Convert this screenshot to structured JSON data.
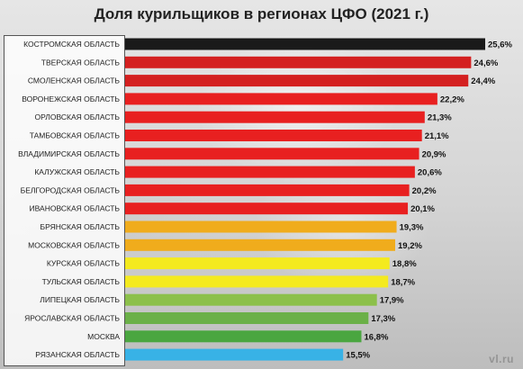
{
  "chart_data": {
    "type": "bar",
    "orientation": "horizontal",
    "title": "Доля курильщиков в регионах ЦФО (2021 г.)",
    "categories": [
      "КОСТРОМСКАЯ ОБЛАСТЬ",
      "ТВЕРСКАЯ ОБЛАСТЬ",
      "СМОЛЕНСКАЯ ОБЛАСТЬ",
      "ВОРОНЕЖСКАЯ ОБЛАСТЬ",
      "ОРЛОВСКАЯ ОБЛАСТЬ",
      "ТАМБОВСКАЯ ОБЛАСТЬ",
      "ВЛАДИМИРСКАЯ ОБЛАСТЬ",
      "КАЛУЖСКАЯ ОБЛАСТЬ",
      "БЕЛГОРОДСКАЯ ОБЛАСТЬ",
      "ИВАНОВСКАЯ ОБЛАСТЬ",
      "БРЯНСКАЯ ОБЛАСТЬ",
      "МОСКОВСКАЯ ОБЛАСТЬ",
      "КУРСКАЯ ОБЛАСТЬ",
      "ТУЛЬСКАЯ ОБЛАСТЬ",
      "ЛИПЕЦКАЯ ОБЛАСТЬ",
      "ЯРОСЛАВСКАЯ ОБЛАСТЬ",
      "МОСКВА",
      "РЯЗАНСКАЯ ОБЛАСТЬ"
    ],
    "values": [
      25.6,
      24.6,
      24.4,
      22.2,
      21.3,
      21.1,
      20.9,
      20.6,
      20.2,
      20.1,
      19.3,
      19.2,
      18.8,
      18.7,
      17.9,
      17.3,
      16.8,
      15.5
    ],
    "value_labels": [
      "25,6%",
      "24,6%",
      "24,4%",
      "22,2%",
      "21,3%",
      "21,1%",
      "20,9%",
      "20,6%",
      "20,2%",
      "20,1%",
      "19,3%",
      "19,2%",
      "18,8%",
      "18,7%",
      "17,9%",
      "17,3%",
      "16,8%",
      "15,5%"
    ],
    "colors": [
      "#1a1a1a",
      "#d42020",
      "#d42020",
      "#e82020",
      "#e82020",
      "#e82020",
      "#e82020",
      "#e82020",
      "#e82020",
      "#e82020",
      "#f0ac1c",
      "#f0ac1c",
      "#f4ea1e",
      "#f4ea1e",
      "#8cc04a",
      "#6bb048",
      "#4aa640",
      "#38b2e6"
    ],
    "xlabel": "",
    "ylabel": "",
    "xlim": [
      0,
      25.6
    ],
    "grid": false,
    "legend": "none"
  },
  "watermark": "vl.ru"
}
